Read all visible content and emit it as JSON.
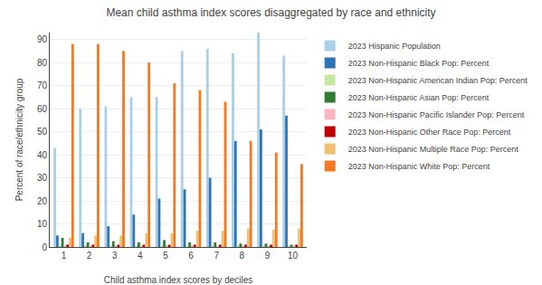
{
  "chart_data": {
    "type": "bar",
    "title": "Mean child asthma index scores disaggregated by race and ethnicity",
    "x_label": "Child asthma index scores by deciles",
    "y_label": "Percent of race/ethnicity group",
    "x": [
      1,
      2,
      3,
      4,
      5,
      6,
      7,
      8,
      9,
      10
    ],
    "series": [
      {
        "name": "2023 Hispanic Population",
        "color": "#a8d0e8",
        "values": [
          43,
          60,
          61,
          65,
          65,
          85,
          86,
          84,
          93,
          83
        ]
      },
      {
        "name": "2023 Non-Hispanic Black Pop: Percent",
        "color": "#2e75b6",
        "values": [
          5,
          6,
          9,
          14,
          21,
          25,
          30,
          46,
          51,
          57
        ]
      },
      {
        "name": "2023 Non-Hispanic American Indian Pop: Percent",
        "color": "#c5e8a0",
        "values": [
          0.8,
          0.8,
          0.8,
          0.8,
          0.8,
          0.8,
          0.8,
          0.8,
          0.8,
          0.8
        ]
      },
      {
        "name": "2023 Non-Hispanic Asian Pop: Percent",
        "color": "#2e7d32",
        "values": [
          4,
          2,
          2.5,
          2,
          3,
          2,
          2,
          1.5,
          1.5,
          1
        ]
      },
      {
        "name": "2023 Non-Hispanic Pacific Islander Pop: Percent",
        "color": "#ffb6c1",
        "values": [
          0.4,
          0.4,
          0.4,
          0.4,
          0.4,
          0.4,
          0.4,
          0.4,
          0.4,
          0.4
        ]
      },
      {
        "name": "2023 Non-Hispanic Other Race Pop: Percent",
        "color": "#c00000",
        "values": [
          1,
          1,
          1,
          1,
          1,
          1,
          1,
          1,
          1,
          1
        ]
      },
      {
        "name": "2023 Non-Hispanic Multiple Race Pop: Percent",
        "color": "#f0c070",
        "values": [
          4,
          5,
          5,
          6,
          6,
          7,
          7,
          8,
          7.5,
          8
        ]
      },
      {
        "name": "2023 Non-Hispanic White Pop: Percent",
        "color": "#f47920",
        "values": [
          88,
          88,
          85,
          80,
          71,
          68,
          63,
          46,
          41,
          36
        ]
      }
    ],
    "xlim": [
      0.45,
      10.55
    ],
    "xticks": [
      1,
      2,
      3,
      4,
      5,
      6,
      7,
      8,
      9,
      10
    ],
    "ylim": [
      0,
      93
    ],
    "yticks": [
      0,
      10,
      20,
      30,
      40,
      50,
      60,
      70,
      80,
      90
    ],
    "grid": "y",
    "legend": "right"
  }
}
